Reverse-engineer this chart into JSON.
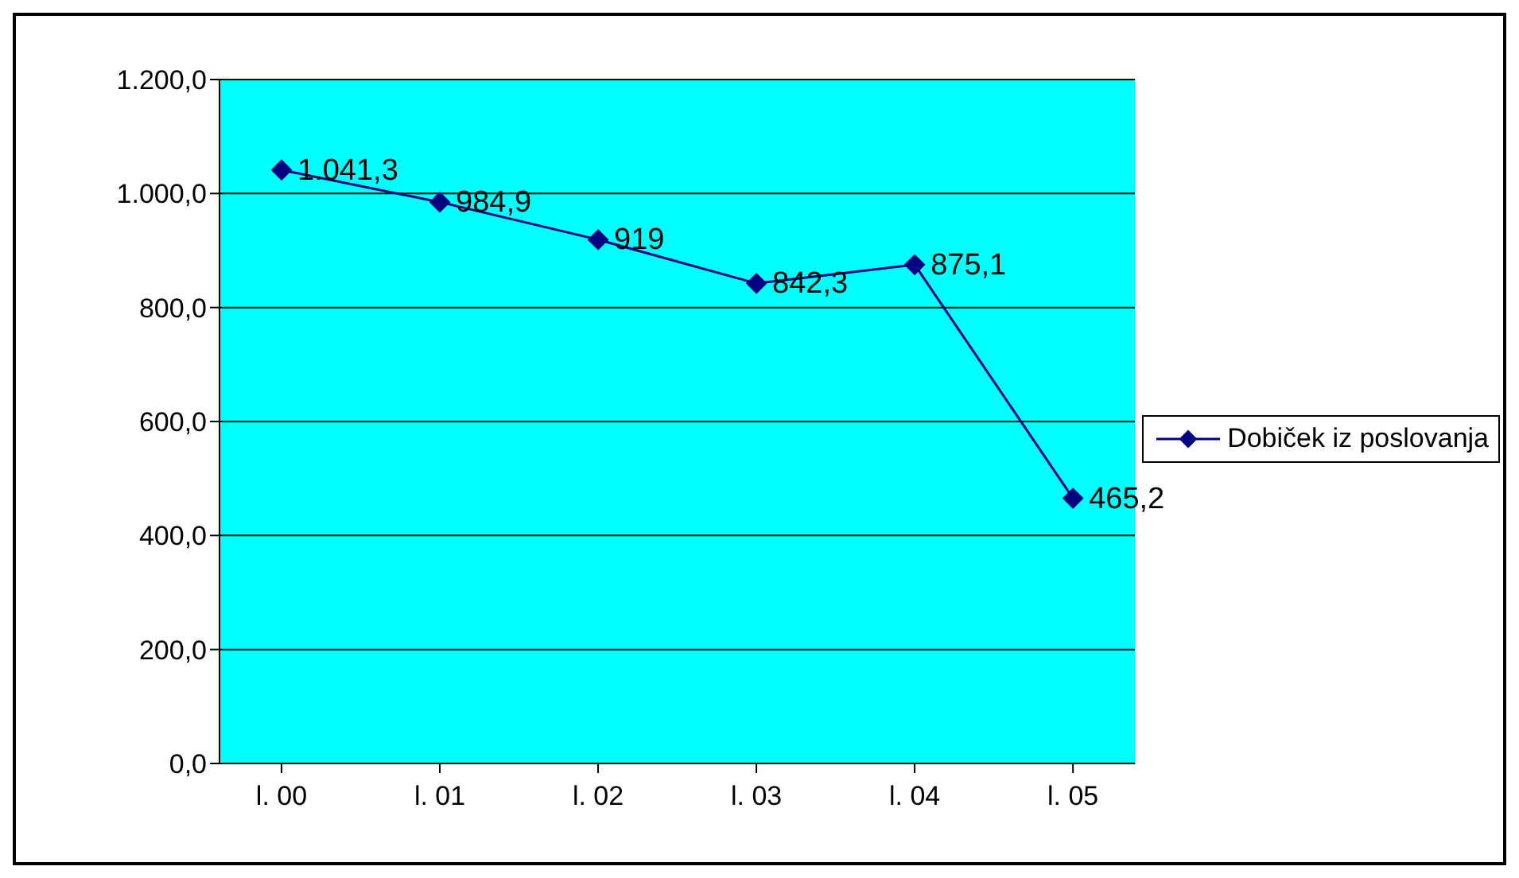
{
  "chart_data": {
    "type": "line",
    "categories": [
      "l. 00",
      "l. 01",
      "l. 02",
      "l. 03",
      "l. 04",
      "l. 05"
    ],
    "series": [
      {
        "name": "Dobiček iz poslovanja",
        "color": "#000080",
        "values": [
          1041.3,
          984.9,
          919,
          842.3,
          875.1,
          465.2
        ],
        "value_labels": [
          "1.041,3",
          "984,9",
          "919",
          "842,3",
          "875,1",
          "465,2"
        ]
      }
    ],
    "ylim": [
      0,
      1200
    ],
    "yticks": [
      {
        "value": 0,
        "label": "0,0"
      },
      {
        "value": 200,
        "label": "200,0"
      },
      {
        "value": 400,
        "label": "400,0"
      },
      {
        "value": 600,
        "label": "600,0"
      },
      {
        "value": 800,
        "label": "800,0"
      },
      {
        "value": 1000,
        "label": "1.000,0"
      },
      {
        "value": 1200,
        "label": "1.200,0"
      }
    ],
    "grid": "y",
    "legend": "right",
    "marker": "diamond",
    "line_style": "solid"
  }
}
